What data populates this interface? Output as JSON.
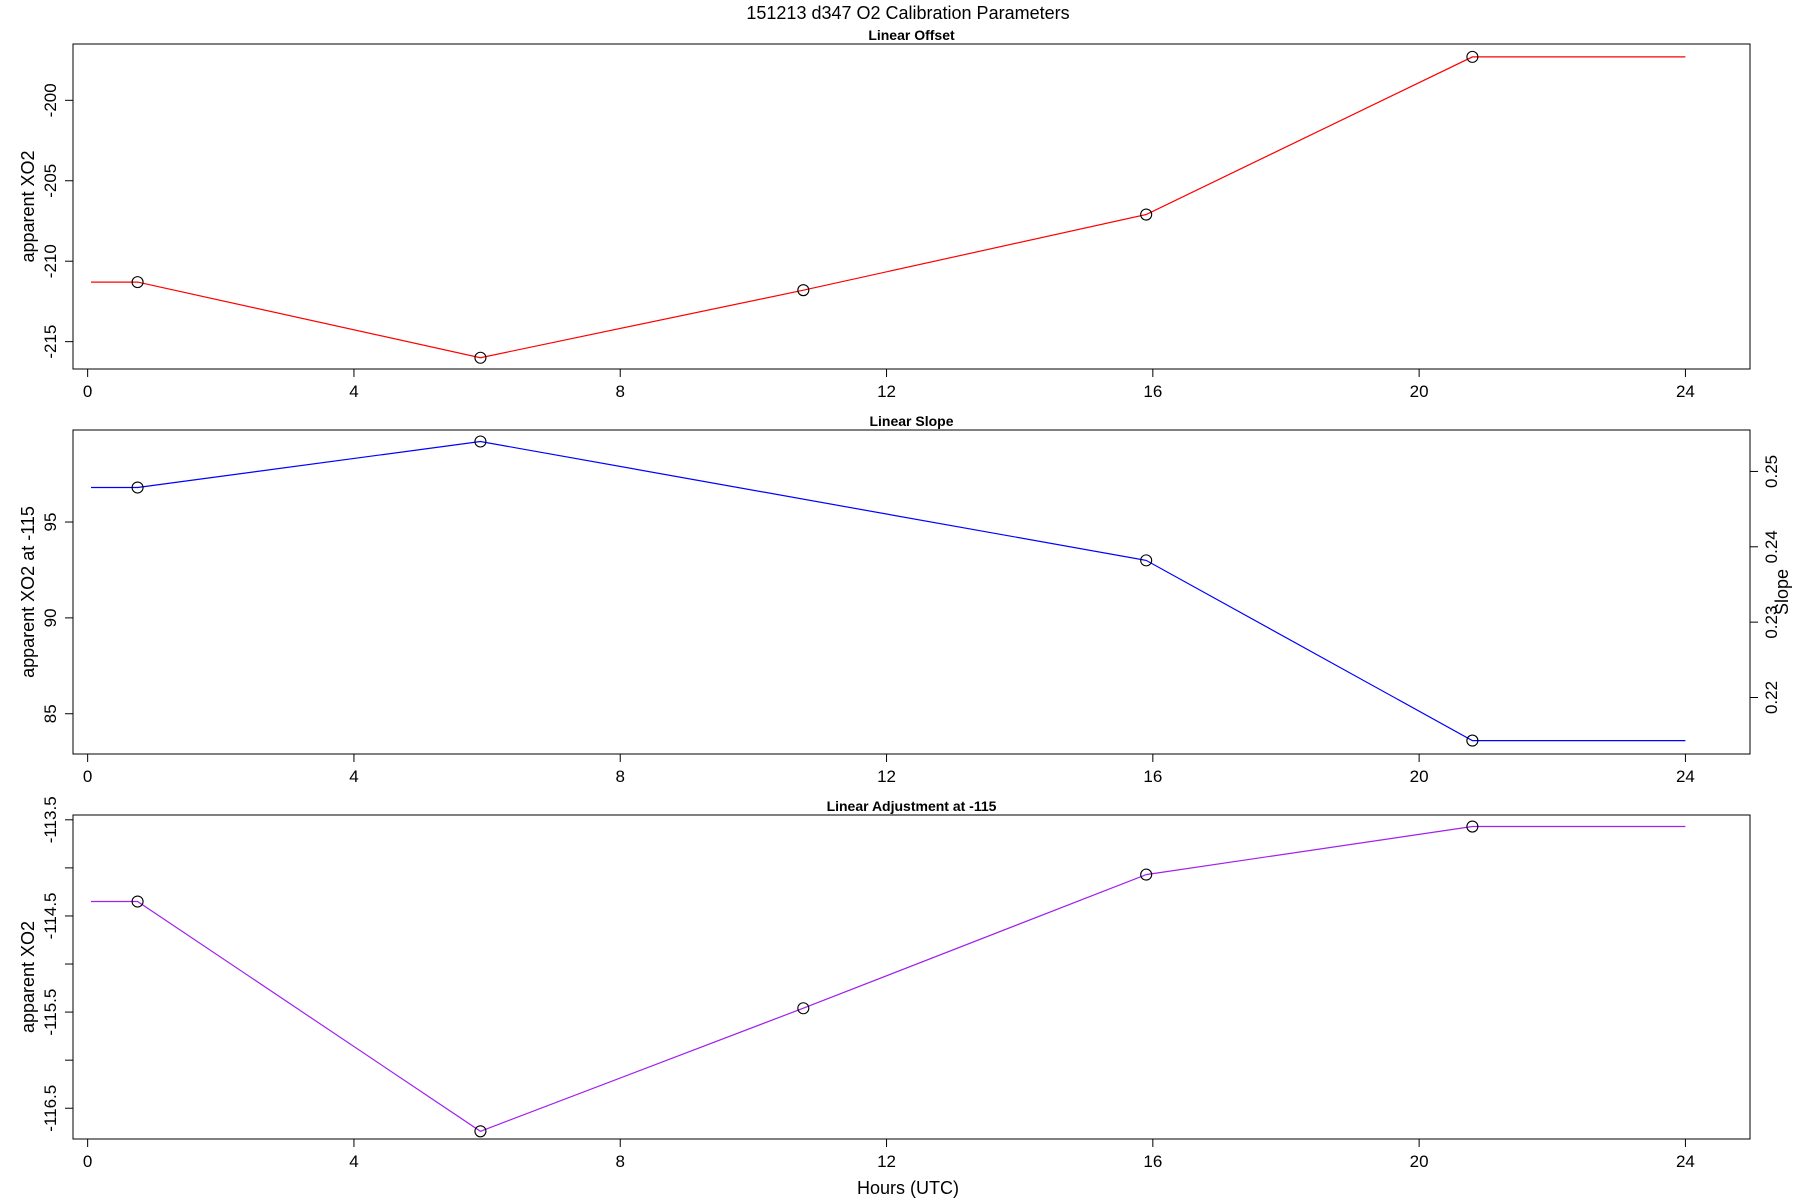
{
  "title": "151213   d347   O2 Calibration Parameters",
  "xlabel": "Hours (UTC)",
  "colors": {
    "offset": "#ff0000",
    "slope": "#0000ff",
    "adjustment": "#a020f0",
    "marker": "#000000"
  },
  "chart_data": [
    {
      "type": "line",
      "title": "Linear Offset",
      "ylabel": "apparent XO2",
      "xlim": [
        0,
        24
      ],
      "ylim": [
        -216.7,
        -196.5
      ],
      "x_ticks": [
        0,
        4,
        8,
        12,
        16,
        20,
        24
      ],
      "y_ticks": [
        -215,
        -210,
        -205,
        -200
      ],
      "x": [
        0.75,
        5.9,
        10.75,
        15.9,
        20.8
      ],
      "values": [
        -211.3,
        -216.0,
        -211.8,
        -207.1,
        -197.3
      ],
      "line_start": [
        0.05,
        -211.3
      ],
      "line_end": [
        24.0,
        -197.3
      ]
    },
    {
      "type": "line",
      "title": "Linear Slope",
      "ylabel": "apparent XO2 at -115",
      "ylabel_right": "Slope",
      "xlim": [
        0,
        24
      ],
      "ylim": [
        82.9,
        99.8
      ],
      "ylim_right": [
        0.2125,
        0.2555
      ],
      "x_ticks": [
        0,
        4,
        8,
        12,
        16,
        20,
        24
      ],
      "y_ticks": [
        85,
        90,
        95
      ],
      "y_ticks_right": [
        0.22,
        0.23,
        0.24,
        0.25
      ],
      "x": [
        0.75,
        5.9,
        15.9,
        20.8
      ],
      "values": [
        96.8,
        99.2,
        93.0,
        83.6
      ],
      "line_start": [
        0.05,
        96.8
      ],
      "line_end": [
        24.0,
        83.6
      ]
    },
    {
      "type": "line",
      "title": "Linear Adjustment at -115",
      "ylabel": "apparent XO2",
      "xlim": [
        0,
        24
      ],
      "ylim": [
        -116.82,
        -113.45
      ],
      "x_ticks": [
        0,
        4,
        8,
        12,
        16,
        20,
        24
      ],
      "y_ticks": [
        -116.5,
        -115.5,
        -114.5,
        -113.5
      ],
      "y_minor_ticks": [
        -116.0,
        -115.0,
        -114.0
      ],
      "x": [
        0.75,
        5.9,
        10.75,
        15.9,
        20.8
      ],
      "values": [
        -114.35,
        -116.74,
        -115.46,
        -114.07,
        -113.57
      ],
      "line_start": [
        0.05,
        -114.35
      ],
      "line_end": [
        24.0,
        -113.57
      ]
    }
  ]
}
